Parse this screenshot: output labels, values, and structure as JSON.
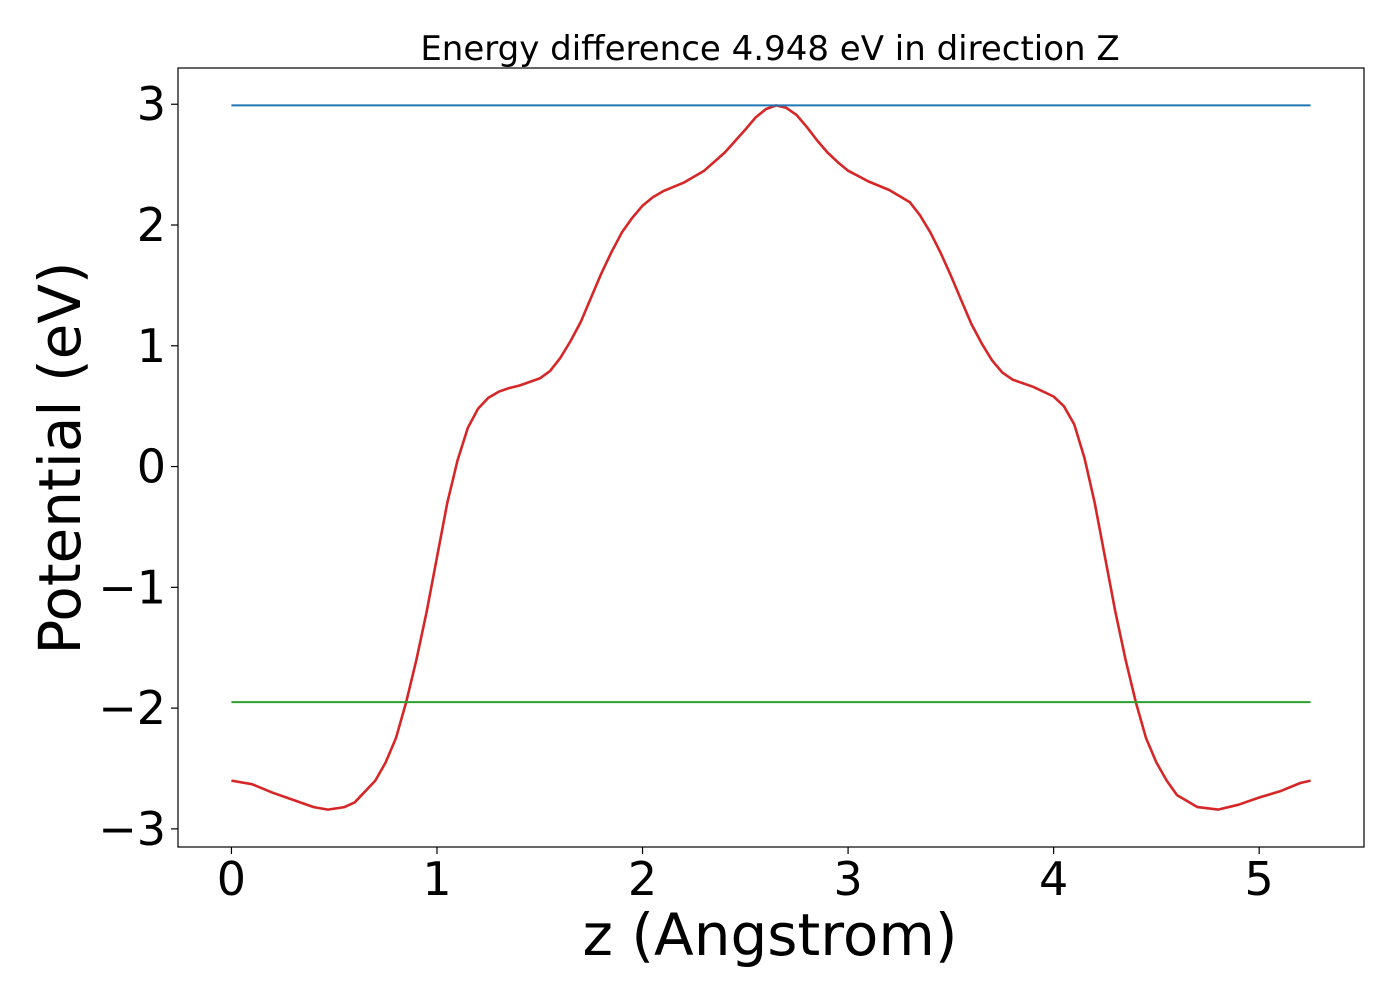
{
  "chart_data": {
    "type": "line",
    "title": "Energy difference 4.948 eV in direction Z",
    "xlabel": "z (Angstrom)",
    "ylabel": "Potential (eV)",
    "xlim": [
      -0.26,
      5.51
    ],
    "ylim": [
      -3.15,
      3.3
    ],
    "xticks": [
      0,
      1,
      2,
      3,
      4,
      5
    ],
    "xtick_labels": [
      "0",
      "1",
      "2",
      "3",
      "4",
      "5"
    ],
    "yticks": [
      3,
      2,
      1,
      0,
      -1,
      -2,
      -3
    ],
    "ytick_labels": [
      "3",
      "2",
      "1",
      "0",
      "−1",
      "−2",
      "−3"
    ],
    "grid": false,
    "series": [
      {
        "color": "#d62728",
        "kind": "curve",
        "x": [
          0,
          0.1,
          0.2,
          0.3,
          0.4,
          0.47,
          0.55,
          0.6,
          0.7,
          0.75,
          0.8,
          0.85,
          0.9,
          0.95,
          1.0,
          1.05,
          1.1,
          1.15,
          1.2,
          1.25,
          1.3,
          1.35,
          1.4,
          1.5,
          1.55,
          1.6,
          1.65,
          1.7,
          1.75,
          1.8,
          1.85,
          1.9,
          1.95,
          2.0,
          2.05,
          2.1,
          2.2,
          2.3,
          2.4,
          2.5,
          2.55,
          2.6,
          2.65,
          2.7,
          2.75,
          2.8,
          2.85,
          2.9,
          2.95,
          3.0,
          3.1,
          3.2,
          3.3,
          3.35,
          3.4,
          3.45,
          3.5,
          3.55,
          3.6,
          3.65,
          3.7,
          3.75,
          3.8,
          3.9,
          4.0,
          4.05,
          4.1,
          4.15,
          4.2,
          4.25,
          4.3,
          4.35,
          4.4,
          4.45,
          4.5,
          4.55,
          4.6,
          4.7,
          4.8,
          4.9,
          5.0,
          5.1,
          5.2,
          5.25
        ],
        "y": [
          -2.6,
          -2.63,
          -2.7,
          -2.76,
          -2.82,
          -2.84,
          -2.82,
          -2.78,
          -2.6,
          -2.45,
          -2.25,
          -1.95,
          -1.6,
          -1.2,
          -0.75,
          -0.3,
          0.05,
          0.32,
          0.48,
          0.57,
          0.62,
          0.65,
          0.67,
          0.73,
          0.79,
          0.9,
          1.04,
          1.2,
          1.4,
          1.6,
          1.78,
          1.94,
          2.06,
          2.16,
          2.23,
          2.28,
          2.35,
          2.45,
          2.6,
          2.79,
          2.89,
          2.96,
          2.99,
          2.97,
          2.91,
          2.81,
          2.7,
          2.6,
          2.52,
          2.45,
          2.36,
          2.29,
          2.19,
          2.08,
          1.94,
          1.77,
          1.58,
          1.38,
          1.18,
          1.02,
          0.88,
          0.78,
          0.72,
          0.66,
          0.58,
          0.5,
          0.35,
          0.07,
          -0.3,
          -0.75,
          -1.2,
          -1.6,
          -1.95,
          -2.25,
          -2.45,
          -2.6,
          -2.72,
          -2.82,
          -2.84,
          -2.8,
          -2.74,
          -2.69,
          -2.62,
          -2.6
        ]
      },
      {
        "color": "#1f77b4",
        "kind": "hline",
        "x": [
          0,
          5.25
        ],
        "y": [
          2.99,
          2.99
        ]
      },
      {
        "color": "#2ca02c",
        "kind": "hline",
        "x": [
          0,
          5.25
        ],
        "y": [
          -1.95,
          -1.95
        ]
      }
    ]
  }
}
